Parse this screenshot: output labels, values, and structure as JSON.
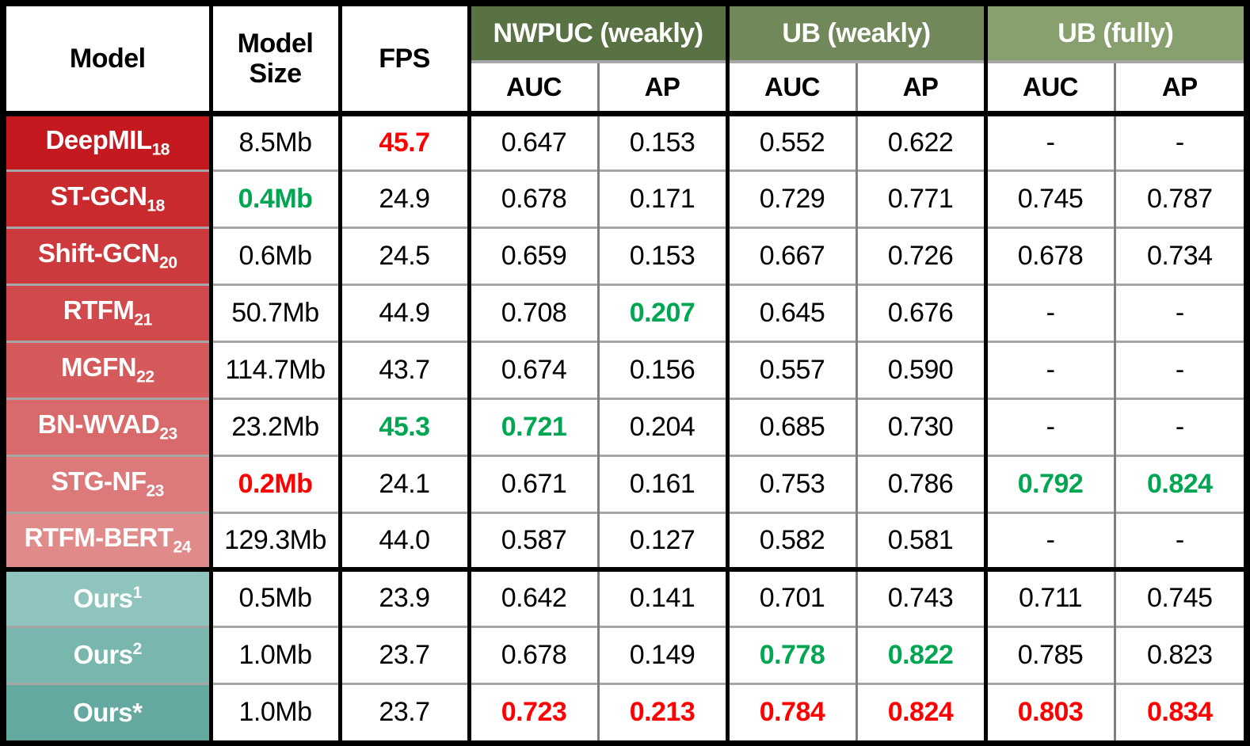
{
  "chart_data": {
    "type": "table",
    "header": {
      "model": "Model",
      "model_size": "Model Size",
      "fps": "FPS",
      "groups": [
        {
          "label": "NWPUC (weakly)",
          "bg": "#597243"
        },
        {
          "label": "UB (weakly)",
          "bg": "#70885a"
        },
        {
          "label": "UB (fully)",
          "bg": "#87a06d"
        }
      ],
      "subheaders": [
        "AUC",
        "AP",
        "AUC",
        "AP",
        "AUC",
        "AP"
      ]
    },
    "columns": [
      "Model",
      "Model Size",
      "FPS",
      "NWPUC (weakly) AUC",
      "NWPUC (weakly) AP",
      "UB (weakly) AUC",
      "UB (weakly) AP",
      "UB (fully) AUC",
      "UB (fully) AP"
    ],
    "rows": [
      {
        "model": "DeepMIL",
        "model_sub": "18",
        "model_sup": "",
        "row_bg": "#c41a1f",
        "values": [
          {
            "text": "8.5Mb",
            "color": "k"
          },
          {
            "text": "45.7",
            "color": "r"
          },
          {
            "text": "0.647",
            "color": "k"
          },
          {
            "text": "0.153",
            "color": "k"
          },
          {
            "text": "0.552",
            "color": "k"
          },
          {
            "text": "0.622",
            "color": "k"
          },
          {
            "text": "-",
            "color": "k"
          },
          {
            "text": "-",
            "color": "k"
          }
        ]
      },
      {
        "model": "ST-GCN",
        "model_sub": "18",
        "model_sup": "",
        "row_bg": "#c82a2e",
        "values": [
          {
            "text": "0.4Mb",
            "color": "g"
          },
          {
            "text": "24.9",
            "color": "k"
          },
          {
            "text": "0.678",
            "color": "k"
          },
          {
            "text": "0.171",
            "color": "k"
          },
          {
            "text": "0.729",
            "color": "k"
          },
          {
            "text": "0.771",
            "color": "k"
          },
          {
            "text": "0.745",
            "color": "k"
          },
          {
            "text": "0.787",
            "color": "k"
          }
        ]
      },
      {
        "model": "Shift-GCN",
        "model_sub": "20",
        "model_sup": "",
        "row_bg": "#cc3a3d",
        "values": [
          {
            "text": "0.6Mb",
            "color": "k"
          },
          {
            "text": "24.5",
            "color": "k"
          },
          {
            "text": "0.659",
            "color": "k"
          },
          {
            "text": "0.153",
            "color": "k"
          },
          {
            "text": "0.667",
            "color": "k"
          },
          {
            "text": "0.726",
            "color": "k"
          },
          {
            "text": "0.678",
            "color": "k"
          },
          {
            "text": "0.734",
            "color": "k"
          }
        ]
      },
      {
        "model": "RTFM",
        "model_sub": "21",
        "model_sup": "",
        "row_bg": "#d04a4d",
        "values": [
          {
            "text": "50.7Mb",
            "color": "k"
          },
          {
            "text": "44.9",
            "color": "k"
          },
          {
            "text": "0.708",
            "color": "k"
          },
          {
            "text": "0.207",
            "color": "g"
          },
          {
            "text": "0.645",
            "color": "k"
          },
          {
            "text": "0.676",
            "color": "k"
          },
          {
            "text": "-",
            "color": "k"
          },
          {
            "text": "-",
            "color": "k"
          }
        ]
      },
      {
        "model": "MGFN",
        "model_sub": "22",
        "model_sup": "",
        "row_bg": "#d45a5c",
        "values": [
          {
            "text": "114.7Mb",
            "color": "k"
          },
          {
            "text": "43.7",
            "color": "k"
          },
          {
            "text": "0.674",
            "color": "k"
          },
          {
            "text": "0.156",
            "color": "k"
          },
          {
            "text": "0.557",
            "color": "k"
          },
          {
            "text": "0.590",
            "color": "k"
          },
          {
            "text": "-",
            "color": "k"
          },
          {
            "text": "-",
            "color": "k"
          }
        ]
      },
      {
        "model": "BN-WVAD",
        "model_sub": "23",
        "model_sup": "",
        "row_bg": "#d86a6b",
        "values": [
          {
            "text": "23.2Mb",
            "color": "k"
          },
          {
            "text": "45.3",
            "color": "g"
          },
          {
            "text": "0.721",
            "color": "g"
          },
          {
            "text": "0.204",
            "color": "k"
          },
          {
            "text": "0.685",
            "color": "k"
          },
          {
            "text": "0.730",
            "color": "k"
          },
          {
            "text": "-",
            "color": "k"
          },
          {
            "text": "-",
            "color": "k"
          }
        ]
      },
      {
        "model": "STG-NF",
        "model_sub": "23",
        "model_sup": "",
        "row_bg": "#dc7a7b",
        "values": [
          {
            "text": "0.2Mb",
            "color": "r"
          },
          {
            "text": "24.1",
            "color": "k"
          },
          {
            "text": "0.671",
            "color": "k"
          },
          {
            "text": "0.161",
            "color": "k"
          },
          {
            "text": "0.753",
            "color": "k"
          },
          {
            "text": "0.786",
            "color": "k"
          },
          {
            "text": "0.792",
            "color": "g"
          },
          {
            "text": "0.824",
            "color": "g"
          }
        ]
      },
      {
        "model": "RTFM-BERT",
        "model_sub": "24",
        "model_sup": "",
        "row_bg": "#e08a8a",
        "values": [
          {
            "text": "129.3Mb",
            "color": "k"
          },
          {
            "text": "44.0",
            "color": "k"
          },
          {
            "text": "0.587",
            "color": "k"
          },
          {
            "text": "0.127",
            "color": "k"
          },
          {
            "text": "0.582",
            "color": "k"
          },
          {
            "text": "0.581",
            "color": "k"
          },
          {
            "text": "-",
            "color": "k"
          },
          {
            "text": "-",
            "color": "k"
          }
        ]
      },
      {
        "model": "Ours",
        "model_sub": "",
        "model_sup": "1",
        "row_bg": "#8ec4bd",
        "values": [
          {
            "text": "0.5Mb",
            "color": "k"
          },
          {
            "text": "23.9",
            "color": "k"
          },
          {
            "text": "0.642",
            "color": "k"
          },
          {
            "text": "0.141",
            "color": "k"
          },
          {
            "text": "0.701",
            "color": "k"
          },
          {
            "text": "0.743",
            "color": "k"
          },
          {
            "text": "0.711",
            "color": "k"
          },
          {
            "text": "0.745",
            "color": "k"
          }
        ]
      },
      {
        "model": "Ours",
        "model_sub": "",
        "model_sup": "2",
        "row_bg": "#79b6ae",
        "values": [
          {
            "text": "1.0Mb",
            "color": "k"
          },
          {
            "text": "23.7",
            "color": "k"
          },
          {
            "text": "0.678",
            "color": "k"
          },
          {
            "text": "0.149",
            "color": "k"
          },
          {
            "text": "0.778",
            "color": "g"
          },
          {
            "text": "0.822",
            "color": "g"
          },
          {
            "text": "0.785",
            "color": "k"
          },
          {
            "text": "0.823",
            "color": "k"
          }
        ]
      },
      {
        "model": "Ours*",
        "model_sub": "",
        "model_sup": "",
        "row_bg": "#65a8a0",
        "values": [
          {
            "text": "1.0Mb",
            "color": "k"
          },
          {
            "text": "23.7",
            "color": "k"
          },
          {
            "text": "0.723",
            "color": "r"
          },
          {
            "text": "0.213",
            "color": "r"
          },
          {
            "text": "0.784",
            "color": "r"
          },
          {
            "text": "0.824",
            "color": "r"
          },
          {
            "text": "0.803",
            "color": "r"
          },
          {
            "text": "0.834",
            "color": "r"
          }
        ]
      }
    ],
    "colors": {
      "highlight_red": "#fe0000",
      "highlight_green": "#00a651",
      "grid_gray_vertical": "#7f7f7f",
      "grid_gray_horizontal": "#a6a6a6",
      "border_black": "#000000",
      "header_green_dark": "#597243",
      "header_green_mid": "#70885a",
      "header_green_light": "#87a06d",
      "row_red_start": "#c41a1f",
      "row_red_end": "#e08a8a",
      "row_teal_start": "#8ec4bd",
      "row_teal_end": "#65a8a0"
    },
    "layout": {
      "ours_separator_after_row_index": 7,
      "highlight_meaning": "bold red / bold green mark extreme values"
    }
  }
}
